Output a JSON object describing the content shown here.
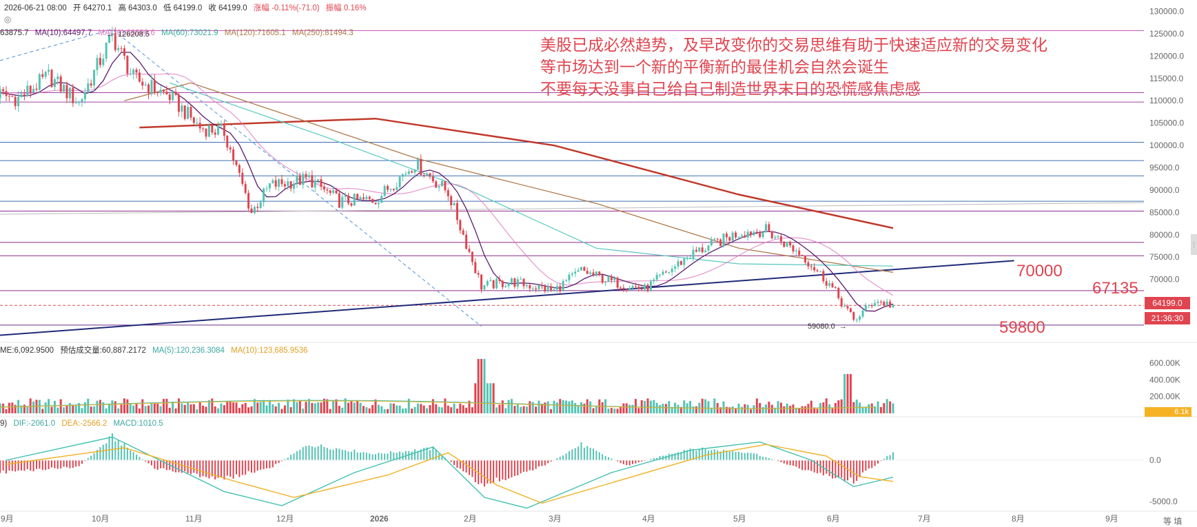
{
  "header": {
    "datetime": "2026-06-21 08:00",
    "open": "开 64270.1",
    "high": "高 64303.0",
    "low": "低 64199.0",
    "close": "收 64199.0",
    "change": "涨幅 -0.11%(-71.0)",
    "amplitude": "振幅 0.16%"
  },
  "ma_legend": [
    {
      "text": "63875.7",
      "color": "#333333"
    },
    {
      "text": "MA(10):64497.7",
      "color": "#5a1a6e"
    },
    {
      "text": "MA(30):68090.6",
      "color": "#e07ac0"
    },
    {
      "text": "MA(60):73021.9",
      "color": "#56c7c0"
    },
    {
      "text": "MA(120):71605.1",
      "color": "#b0784a"
    },
    {
      "text": "MA(250):81494.3",
      "color": "#b0784a"
    }
  ],
  "high_marker": "126208.5",
  "low_marker": "59080.0",
  "annotation": [
    "美股已成必然趋势，及早改变你的交易思维有助于快速适应新的交易变化",
    "等市场达到一个新的平衡新的最佳机会自然会诞生",
    "不要每天没事自己给自己制造世界末日的恐慌感焦虑感"
  ],
  "levels": {
    "l70000": "70000",
    "l67135": "67135",
    "l59800": "59800"
  },
  "price_tag": "64199.0",
  "countdown_tag": "21:36:30",
  "volume_legend": {
    "me": "ME:6,092.9500",
    "est": "预估成交量:60,887.2172",
    "ma5": "MA(5):120,236.3084",
    "ma10": "MA(10):123,685.9536"
  },
  "volume_tag": "6.1k",
  "macd_legend": {
    "prefix": "9)",
    "dif": "DIF:-2061.0",
    "dea": "DEA:-2566.2",
    "macd": "MACD:1010.5"
  },
  "colors": {
    "up": "#e0444f",
    "down": "#52c3b2",
    "dif": "#40c0b0",
    "dea": "#f0b020",
    "trendline": "#1f2a78",
    "ma250": "#c0392b"
  },
  "corner_label": "等 填",
  "chart_data": [
    {
      "type": "candlestick",
      "title": "",
      "x_ticks": [
        "9月",
        "10月",
        "11月",
        "12月",
        "2026",
        "2月",
        "3月",
        "4月",
        "5月",
        "6月",
        "7月",
        "8月",
        "9月"
      ],
      "y_ticks": [
        130000,
        125000,
        120000,
        115000,
        110000,
        105000,
        100000,
        95000,
        90000,
        85000,
        80000,
        75000,
        70000,
        65000
      ],
      "y_tick_labels": [
        "130000.0",
        "125000.0",
        "120000.0",
        "115000.0",
        "110000.0",
        "105000.0",
        "100000.0",
        "95000.0",
        "90000.0",
        "85000.0",
        "80000.0",
        "75000.0",
        "70000.0",
        "65000.0"
      ],
      "ylim": [
        57000,
        131000
      ],
      "last_price": 64199.0,
      "period_high": 126208.5,
      "period_low": 59080.0,
      "close_path": [
        [
          "2025-08-25",
          112000
        ],
        [
          "2025-09-05",
          110500
        ],
        [
          "2025-09-15",
          115500
        ],
        [
          "2025-09-25",
          109500
        ],
        [
          "2025-10-06",
          124500
        ],
        [
          "2025-10-13",
          115000
        ],
        [
          "2025-10-25",
          111000
        ],
        [
          "2025-11-04",
          104000
        ],
        [
          "2025-11-12",
          103000
        ],
        [
          "2025-11-21",
          85000
        ],
        [
          "2025-11-27",
          91000
        ],
        [
          "2025-12-10",
          92500
        ],
        [
          "2025-12-20",
          87500
        ],
        [
          "2026-01-01",
          87800
        ],
        [
          "2026-01-14",
          96000
        ],
        [
          "2026-01-25",
          89500
        ],
        [
          "2026-02-05",
          68500
        ],
        [
          "2026-02-15",
          69500
        ],
        [
          "2026-03-01",
          67500
        ],
        [
          "2026-03-10",
          72000
        ],
        [
          "2026-03-20",
          69500
        ],
        [
          "2026-03-31",
          67800
        ],
        [
          "2026-04-15",
          75500
        ],
        [
          "2026-05-01",
          80500
        ],
        [
          "2026-05-10",
          81000
        ],
        [
          "2026-05-22",
          75500
        ],
        [
          "2026-05-31",
          69000
        ],
        [
          "2026-06-08",
          60800
        ],
        [
          "2026-06-15",
          65300
        ],
        [
          "2026-06-21",
          64199
        ]
      ],
      "ma250_path": [
        [
          "2025-10-15",
          104000
        ],
        [
          "2026-01-01",
          106000
        ],
        [
          "2026-03-01",
          100000
        ],
        [
          "2026-05-01",
          89000
        ],
        [
          "2026-06-21",
          81500
        ]
      ],
      "ma120_path": [
        [
          "2025-10-10",
          110000
        ],
        [
          "2025-11-01",
          114000
        ],
        [
          "2026-01-15",
          97000
        ],
        [
          "2026-03-15",
          87000
        ],
        [
          "2026-05-01",
          77000
        ],
        [
          "2026-06-21",
          71600
        ]
      ],
      "ma60_path": [
        [
          "2025-10-25",
          114000
        ],
        [
          "2025-12-15",
          102000
        ],
        [
          "2026-02-01",
          90000
        ],
        [
          "2026-03-15",
          77000
        ],
        [
          "2026-05-01",
          73500
        ],
        [
          "2026-06-21",
          73000
        ]
      ],
      "horizontal_levels": [
        125700,
        111800,
        109700,
        100700,
        96600,
        93200,
        87500,
        85300,
        78300,
        75300,
        67500,
        59800
      ],
      "trendline": {
        "start": [
          "2025-08-25",
          57500
        ],
        "end": [
          "2026-07-31",
          74200
        ]
      },
      "labeled_levels": [
        70000,
        67135,
        59800
      ]
    },
    {
      "type": "bar",
      "title": "Volume",
      "y_tick_labels": [
        "600.00K",
        "400.00K",
        "200.00K"
      ],
      "ylim": [
        0,
        700000
      ],
      "spikes": [
        [
          "2026-02-05",
          650000
        ],
        [
          "2026-06-06",
          470000
        ]
      ],
      "typical_volume": 120000
    },
    {
      "type": "bar",
      "title": "MACD",
      "y_tick_labels": [
        "0.0",
        "-5000.0"
      ],
      "ylim": [
        -6000,
        4000
      ],
      "histogram_path": [
        [
          "2025-09-01",
          -1500
        ],
        [
          "2025-09-25",
          -800
        ],
        [
          "2025-10-06",
          3000
        ],
        [
          "2025-10-20",
          -1000
        ],
        [
          "2025-11-12",
          -2400
        ],
        [
          "2025-11-28",
          -800
        ],
        [
          "2025-12-10",
          2000
        ],
        [
          "2026-01-01",
          800
        ],
        [
          "2026-01-20",
          1500
        ],
        [
          "2026-02-05",
          -3200
        ],
        [
          "2026-02-25",
          -800
        ],
        [
          "2026-03-10",
          2000
        ],
        [
          "2026-03-25",
          -700
        ],
        [
          "2026-04-15",
          1500
        ],
        [
          "2026-05-05",
          1000
        ],
        [
          "2026-05-25",
          -1500
        ],
        [
          "2026-06-08",
          -2600
        ],
        [
          "2026-06-21",
          1010
        ]
      ],
      "dif_path": [
        [
          "2025-09-01",
          0
        ],
        [
          "2025-10-06",
          2800
        ],
        [
          "2025-11-12",
          -3800
        ],
        [
          "2025-12-01",
          -5500
        ],
        [
          "2025-12-25",
          -1500
        ],
        [
          "2026-01-20",
          1600
        ],
        [
          "2026-02-06",
          -4500
        ],
        [
          "2026-02-20",
          -5800
        ],
        [
          "2026-03-20",
          -1500
        ],
        [
          "2026-04-15",
          1200
        ],
        [
          "2026-05-08",
          2200
        ],
        [
          "2026-05-25",
          0
        ],
        [
          "2026-06-08",
          -3200
        ],
        [
          "2026-06-21",
          -2061
        ]
      ],
      "dea_path": [
        [
          "2025-09-01",
          -500
        ],
        [
          "2025-10-10",
          1500
        ],
        [
          "2025-11-15",
          -2500
        ],
        [
          "2025-12-05",
          -4500
        ],
        [
          "2026-01-05",
          -1800
        ],
        [
          "2026-01-25",
          900
        ],
        [
          "2026-02-10",
          -3000
        ],
        [
          "2026-02-25",
          -5200
        ],
        [
          "2026-03-25",
          -2200
        ],
        [
          "2026-04-20",
          600
        ],
        [
          "2026-05-10",
          1900
        ],
        [
          "2026-05-30",
          500
        ],
        [
          "2026-06-10",
          -2000
        ],
        [
          "2026-06-21",
          -2566
        ]
      ]
    }
  ]
}
